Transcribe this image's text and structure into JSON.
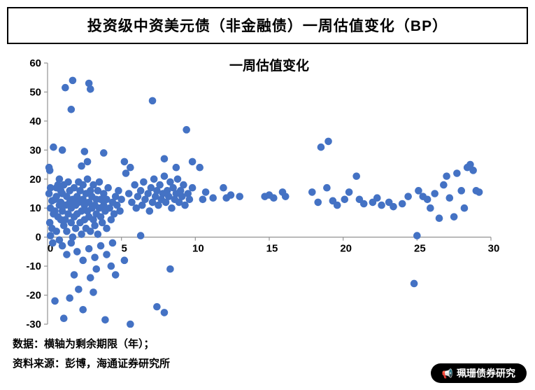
{
  "header": {
    "title": "投资级中资美元债（非金融债）一周估值变化（BP）"
  },
  "footer": {
    "line1": "数据：横轴为剩余期限（年）；",
    "line2": "资料来源：彭博，海通证券研究所"
  },
  "badge": {
    "icon": "📢",
    "label": "珮珊债券研究"
  },
  "chart_data": {
    "type": "scatter",
    "title": "一周估值变化",
    "xlabel": "剩余期限（年）",
    "ylabel": "BP",
    "xlim": [
      0,
      30
    ],
    "ylim": [
      -30,
      60
    ],
    "xticks": [
      0,
      5,
      10,
      15,
      20,
      25,
      30
    ],
    "yticks": [
      -30,
      -20,
      -10,
      0,
      10,
      20,
      30,
      40,
      50,
      60
    ],
    "grid": false,
    "legend": "none",
    "point_color": "#4472C4",
    "axis_color": "#9b9b9b",
    "points": [
      [
        1.2,
        51.5
      ],
      [
        1.7,
        54
      ],
      [
        2.8,
        53
      ],
      [
        2.9,
        51
      ],
      [
        1.6,
        44
      ],
      [
        7.1,
        47
      ],
      [
        9.4,
        37
      ],
      [
        0.4,
        31
      ],
      [
        1.0,
        30
      ],
      [
        2.5,
        29.5
      ],
      [
        3.8,
        29
      ],
      [
        2.3,
        24.5
      ],
      [
        2.7,
        26
      ],
      [
        5.2,
        26
      ],
      [
        5.6,
        24
      ],
      [
        5.3,
        22
      ],
      [
        7.9,
        27
      ],
      [
        8.7,
        24
      ],
      [
        9.8,
        26
      ],
      [
        10.3,
        24
      ],
      [
        0.1,
        24
      ],
      [
        0.15,
        23
      ],
      [
        0.2,
        17
      ],
      [
        0.1,
        15
      ],
      [
        0.3,
        12.5
      ],
      [
        0.2,
        10
      ],
      [
        0.4,
        8
      ],
      [
        0.15,
        5
      ],
      [
        0.3,
        3
      ],
      [
        0.2,
        0.5
      ],
      [
        0.35,
        -2
      ],
      [
        0.6,
        14
      ],
      [
        0.7,
        18
      ],
      [
        0.8,
        11
      ],
      [
        0.5,
        9
      ],
      [
        0.6,
        2
      ],
      [
        0.8,
        -1
      ],
      [
        0.9,
        16
      ],
      [
        0.9,
        6
      ],
      [
        0.5,
        13
      ],
      [
        0.6,
        17
      ],
      [
        0.7,
        7
      ],
      [
        0.8,
        20
      ],
      [
        0.9,
        12
      ],
      [
        1.0,
        9
      ],
      [
        1.0,
        15
      ],
      [
        1.1,
        4
      ],
      [
        1.1,
        18
      ],
      [
        1.2,
        11
      ],
      [
        1.2,
        6
      ],
      [
        1.3,
        14
      ],
      [
        1.3,
        2
      ],
      [
        1.4,
        8
      ],
      [
        1.4,
        19
      ],
      [
        1.5,
        12
      ],
      [
        1.5,
        16
      ],
      [
        1.6,
        5
      ],
      [
        1.6,
        10
      ],
      [
        1.7,
        13
      ],
      [
        1.7,
        0
      ],
      [
        1.8,
        7
      ],
      [
        1.8,
        17
      ],
      [
        1.9,
        11
      ],
      [
        1.9,
        3
      ],
      [
        2.0,
        14
      ],
      [
        2.0,
        8
      ],
      [
        2.1,
        19
      ],
      [
        2.1,
        12
      ],
      [
        2.2,
        5
      ],
      [
        2.2,
        16
      ],
      [
        2.3,
        9
      ],
      [
        2.3,
        1
      ],
      [
        2.4,
        13
      ],
      [
        2.4,
        18
      ],
      [
        2.5,
        6
      ],
      [
        2.5,
        11
      ],
      [
        2.6,
        15
      ],
      [
        2.6,
        3
      ],
      [
        2.7,
        9
      ],
      [
        2.7,
        20
      ],
      [
        2.8,
        12
      ],
      [
        2.8,
        7
      ],
      [
        2.9,
        16
      ],
      [
        2.9,
        2
      ],
      [
        3.0,
        10
      ],
      [
        3.0,
        14
      ],
      [
        3.1,
        6
      ],
      [
        3.1,
        18
      ],
      [
        3.2,
        11
      ],
      [
        3.2,
        4
      ],
      [
        3.3,
        13
      ],
      [
        3.3,
        8
      ],
      [
        3.4,
        16
      ],
      [
        3.4,
        1
      ],
      [
        3.5,
        10
      ],
      [
        3.5,
        19
      ],
      [
        3.6,
        7
      ],
      [
        3.6,
        13
      ],
      [
        3.7,
        5
      ],
      [
        3.8,
        11
      ],
      [
        3.8,
        15
      ],
      [
        3.9,
        9
      ],
      [
        4.0,
        13
      ],
      [
        4.0,
        3
      ],
      [
        4.1,
        17
      ],
      [
        4.2,
        10
      ],
      [
        4.3,
        6
      ],
      [
        4.4,
        12
      ],
      [
        4.5,
        8
      ],
      [
        4.6,
        14
      ],
      [
        4.7,
        11
      ],
      [
        4.8,
        16
      ],
      [
        4.9,
        9
      ],
      [
        5.0,
        13
      ],
      [
        1.0,
        -3
      ],
      [
        1.3,
        -6
      ],
      [
        1.6,
        -2
      ],
      [
        2.0,
        -5
      ],
      [
        2.4,
        -8
      ],
      [
        2.8,
        -4
      ],
      [
        3.2,
        -7
      ],
      [
        3.6,
        -3
      ],
      [
        4.0,
        -6
      ],
      [
        4.4,
        -2
      ],
      [
        1.8,
        -13
      ],
      [
        2.9,
        -14
      ],
      [
        3.3,
        -11
      ],
      [
        4.3,
        -10
      ],
      [
        4.6,
        -13
      ],
      [
        5.2,
        -8
      ],
      [
        8.3,
        -11
      ],
      [
        0.5,
        -22
      ],
      [
        1.1,
        -28
      ],
      [
        1.5,
        -21
      ],
      [
        2.1,
        -18
      ],
      [
        2.4,
        -25
      ],
      [
        3.1,
        -19
      ],
      [
        3.9,
        -28.5
      ],
      [
        5.6,
        -30
      ],
      [
        7.4,
        -24
      ],
      [
        7.9,
        -26
      ],
      [
        24.8,
        -16
      ],
      [
        5.5,
        15
      ],
      [
        5.7,
        12
      ],
      [
        5.9,
        18
      ],
      [
        6.0,
        10
      ],
      [
        6.1,
        14
      ],
      [
        6.3,
        16
      ],
      [
        6.4,
        11
      ],
      [
        6.5,
        19
      ],
      [
        6.6,
        13
      ],
      [
        6.8,
        15
      ],
      [
        6.9,
        9
      ],
      [
        7.0,
        17
      ],
      [
        7.1,
        12
      ],
      [
        7.2,
        20
      ],
      [
        7.3,
        14
      ],
      [
        7.4,
        16
      ],
      [
        7.5,
        11
      ],
      [
        7.6,
        18
      ],
      [
        7.7,
        13
      ],
      [
        7.8,
        15
      ],
      [
        7.9,
        21
      ],
      [
        8.0,
        12
      ],
      [
        8.1,
        16
      ],
      [
        8.2,
        14
      ],
      [
        8.3,
        19
      ],
      [
        8.4,
        10
      ],
      [
        8.5,
        17
      ],
      [
        8.6,
        13
      ],
      [
        8.7,
        15
      ],
      [
        8.8,
        20
      ],
      [
        8.9,
        12
      ],
      [
        9.0,
        16
      ],
      [
        9.1,
        14
      ],
      [
        9.2,
        18
      ],
      [
        9.3,
        11
      ],
      [
        9.5,
        15
      ],
      [
        9.6,
        13
      ],
      [
        9.8,
        17
      ],
      [
        6.3,
        0.5
      ],
      [
        10.5,
        13
      ],
      [
        10.7,
        15.5
      ],
      [
        11.2,
        13.5
      ],
      [
        11.9,
        17
      ],
      [
        12.1,
        13.5
      ],
      [
        12.4,
        14.5
      ],
      [
        13.0,
        14
      ],
      [
        14.7,
        14
      ],
      [
        15.0,
        14.5
      ],
      [
        15.3,
        13.5
      ],
      [
        15.9,
        15.5
      ],
      [
        16.1,
        14
      ],
      [
        17.9,
        15.5
      ],
      [
        18.3,
        12
      ],
      [
        18.5,
        31
      ],
      [
        19.0,
        33
      ],
      [
        18.9,
        17
      ],
      [
        19.3,
        12.5
      ],
      [
        19.6,
        11
      ],
      [
        20.1,
        13
      ],
      [
        20.4,
        15.5
      ],
      [
        20.9,
        21
      ],
      [
        21.1,
        13
      ],
      [
        21.4,
        11.5
      ],
      [
        22.0,
        12
      ],
      [
        22.3,
        13.5
      ],
      [
        22.6,
        11
      ],
      [
        23.1,
        12
      ],
      [
        23.4,
        10.5
      ],
      [
        24.0,
        11.5
      ],
      [
        24.4,
        14
      ],
      [
        25.0,
        0.5
      ],
      [
        25.1,
        16
      ],
      [
        25.4,
        14
      ],
      [
        25.7,
        13
      ],
      [
        25.9,
        10
      ],
      [
        26.2,
        15
      ],
      [
        26.5,
        6.5
      ],
      [
        26.8,
        18
      ],
      [
        27.0,
        21
      ],
      [
        27.2,
        13.5
      ],
      [
        27.5,
        7
      ],
      [
        27.7,
        22
      ],
      [
        28.0,
        16
      ],
      [
        28.2,
        10
      ],
      [
        28.4,
        24
      ],
      [
        28.6,
        25
      ],
      [
        28.8,
        23
      ],
      [
        29.0,
        16
      ],
      [
        29.2,
        15.5
      ]
    ]
  }
}
